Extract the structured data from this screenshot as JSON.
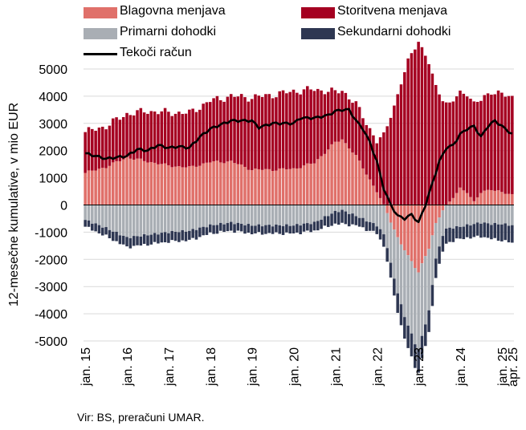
{
  "chart_data": {
    "type": "bar",
    "stacked": true,
    "ylabel": "12-mesečne kumulative, v mio EUR",
    "ylim": [
      -5000,
      5000
    ],
    "yticks": [
      -5000,
      -4000,
      -3000,
      -2000,
      -1000,
      0,
      1000,
      2000,
      3000,
      4000,
      5000
    ],
    "xticks": [
      {
        "label": "jan. 15",
        "index": 0
      },
      {
        "label": "jan. 16",
        "index": 12
      },
      {
        "label": "jan. 17",
        "index": 24
      },
      {
        "label": "jan. 18",
        "index": 36
      },
      {
        "label": "jan. 19",
        "index": 48
      },
      {
        "label": "jan. 20",
        "index": 60
      },
      {
        "label": "jan. 21",
        "index": 72
      },
      {
        "label": "jan. 22",
        "index": 84
      },
      {
        "label": "jan. 23",
        "index": 96
      },
      {
        "label": "jan. 24",
        "index": 108
      },
      {
        "label": "jan. 25",
        "index": 120
      },
      {
        "label": "apr. 25",
        "index": 123
      }
    ],
    "legend": [
      {
        "name": "Blagovna menjava",
        "color": "#E0706A",
        "kind": "bar"
      },
      {
        "name": "Storitvena menjava",
        "color": "#A50021",
        "kind": "bar"
      },
      {
        "name": "Primarni dohodki",
        "color": "#A9AEB4",
        "kind": "bar"
      },
      {
        "name": "Sekundarni dohodki",
        "color": "#2E3752",
        "kind": "bar"
      },
      {
        "name": "Tekoči račun",
        "color": "#000000",
        "kind": "line"
      }
    ],
    "key_points": {
      "goods": [
        [
          0,
          1180
        ],
        [
          6,
          1400
        ],
        [
          12,
          1750
        ],
        [
          18,
          1600
        ],
        [
          24,
          1450
        ],
        [
          30,
          1380
        ],
        [
          36,
          1580
        ],
        [
          42,
          1600
        ],
        [
          48,
          1300
        ],
        [
          54,
          1300
        ],
        [
          60,
          1330
        ],
        [
          66,
          1550
        ],
        [
          72,
          2300
        ],
        [
          74,
          2420
        ],
        [
          78,
          1800
        ],
        [
          84,
          500
        ],
        [
          87,
          -300
        ],
        [
          90,
          -1200
        ],
        [
          93,
          -1900
        ],
        [
          96,
          -2450
        ],
        [
          99,
          -1600
        ],
        [
          101,
          -700
        ],
        [
          103,
          -150
        ],
        [
          105,
          100
        ],
        [
          108,
          600
        ],
        [
          110,
          500
        ],
        [
          112,
          100
        ],
        [
          114,
          450
        ],
        [
          117,
          600
        ],
        [
          120,
          450
        ],
        [
          123,
          380
        ]
      ],
      "services": [
        [
          0,
          1500
        ],
        [
          6,
          1500
        ],
        [
          12,
          1600
        ],
        [
          18,
          1850
        ],
        [
          24,
          1950
        ],
        [
          30,
          2000
        ],
        [
          36,
          2250
        ],
        [
          42,
          2400
        ],
        [
          48,
          2650
        ],
        [
          54,
          2750
        ],
        [
          60,
          2850
        ],
        [
          66,
          2700
        ],
        [
          72,
          1850
        ],
        [
          74,
          1800
        ],
        [
          78,
          1900
        ],
        [
          84,
          1850
        ],
        [
          87,
          2900
        ],
        [
          90,
          4050
        ],
        [
          93,
          5300
        ],
        [
          96,
          6050
        ],
        [
          99,
          5200
        ],
        [
          101,
          4350
        ],
        [
          103,
          3900
        ],
        [
          105,
          3600
        ],
        [
          108,
          3500
        ],
        [
          110,
          3650
        ],
        [
          112,
          3600
        ],
        [
          114,
          3400
        ],
        [
          117,
          3600
        ],
        [
          120,
          3600
        ],
        [
          123,
          3580
        ]
      ],
      "primary": [
        [
          0,
          -550
        ],
        [
          6,
          -850
        ],
        [
          12,
          -1200
        ],
        [
          18,
          -1100
        ],
        [
          24,
          -1000
        ],
        [
          30,
          -950
        ],
        [
          36,
          -750
        ],
        [
          42,
          -650
        ],
        [
          48,
          -750
        ],
        [
          54,
          -750
        ],
        [
          60,
          -750
        ],
        [
          66,
          -650
        ],
        [
          72,
          -250
        ],
        [
          74,
          -200
        ],
        [
          78,
          -400
        ],
        [
          84,
          -750
        ],
        [
          87,
          -1250
        ],
        [
          90,
          -2050
        ],
        [
          93,
          -2600
        ],
        [
          96,
          -2850
        ],
        [
          99,
          -2300
        ],
        [
          101,
          -1300
        ],
        [
          103,
          -900
        ],
        [
          105,
          -850
        ],
        [
          108,
          -800
        ],
        [
          110,
          -750
        ],
        [
          112,
          -700
        ],
        [
          114,
          -650
        ],
        [
          117,
          -700
        ],
        [
          120,
          -700
        ],
        [
          123,
          -750
        ]
      ],
      "secondary": [
        [
          0,
          -250
        ],
        [
          6,
          -300
        ],
        [
          12,
          -350
        ],
        [
          18,
          -350
        ],
        [
          24,
          -350
        ],
        [
          30,
          -350
        ],
        [
          36,
          -300
        ],
        [
          42,
          -300
        ],
        [
          48,
          -300
        ],
        [
          54,
          -300
        ],
        [
          60,
          -300
        ],
        [
          66,
          -300
        ],
        [
          72,
          -450
        ],
        [
          74,
          -500
        ],
        [
          78,
          -350
        ],
        [
          84,
          -300
        ],
        [
          87,
          -500
        ],
        [
          90,
          -700
        ],
        [
          93,
          -850
        ],
        [
          96,
          -850
        ],
        [
          99,
          -800
        ],
        [
          101,
          -700
        ],
        [
          103,
          -600
        ],
        [
          105,
          -500
        ],
        [
          108,
          -450
        ],
        [
          110,
          -450
        ],
        [
          112,
          -500
        ],
        [
          114,
          -500
        ],
        [
          117,
          -550
        ],
        [
          120,
          -600
        ],
        [
          123,
          -650
        ]
      ],
      "current_account": [
        [
          0,
          1900
        ],
        [
          6,
          1700
        ],
        [
          12,
          1800
        ],
        [
          15,
          2050
        ],
        [
          18,
          2000
        ],
        [
          21,
          2200
        ],
        [
          24,
          2100
        ],
        [
          27,
          2150
        ],
        [
          30,
          2100
        ],
        [
          33,
          2500
        ],
        [
          36,
          2800
        ],
        [
          42,
          3100
        ],
        [
          48,
          3100
        ],
        [
          50,
          2850
        ],
        [
          54,
          3000
        ],
        [
          60,
          3000
        ],
        [
          62,
          3200
        ],
        [
          66,
          3200
        ],
        [
          70,
          3300
        ],
        [
          72,
          3450
        ],
        [
          74,
          3500
        ],
        [
          76,
          3500
        ],
        [
          78,
          3100
        ],
        [
          80,
          2800
        ],
        [
          82,
          2300
        ],
        [
          84,
          1600
        ],
        [
          86,
          600
        ],
        [
          88,
          0
        ],
        [
          90,
          -400
        ],
        [
          92,
          -500
        ],
        [
          94,
          -350
        ],
        [
          96,
          -650
        ],
        [
          98,
          0
        ],
        [
          100,
          800
        ],
        [
          102,
          1600
        ],
        [
          104,
          2100
        ],
        [
          106,
          2200
        ],
        [
          108,
          2600
        ],
        [
          110,
          2800
        ],
        [
          112,
          2900
        ],
        [
          114,
          2500
        ],
        [
          116,
          2900
        ],
        [
          118,
          3100
        ],
        [
          120,
          2900
        ],
        [
          122,
          2700
        ],
        [
          123,
          2600
        ]
      ]
    }
  },
  "source_text": "Vir: BS, preračuni UMAR."
}
